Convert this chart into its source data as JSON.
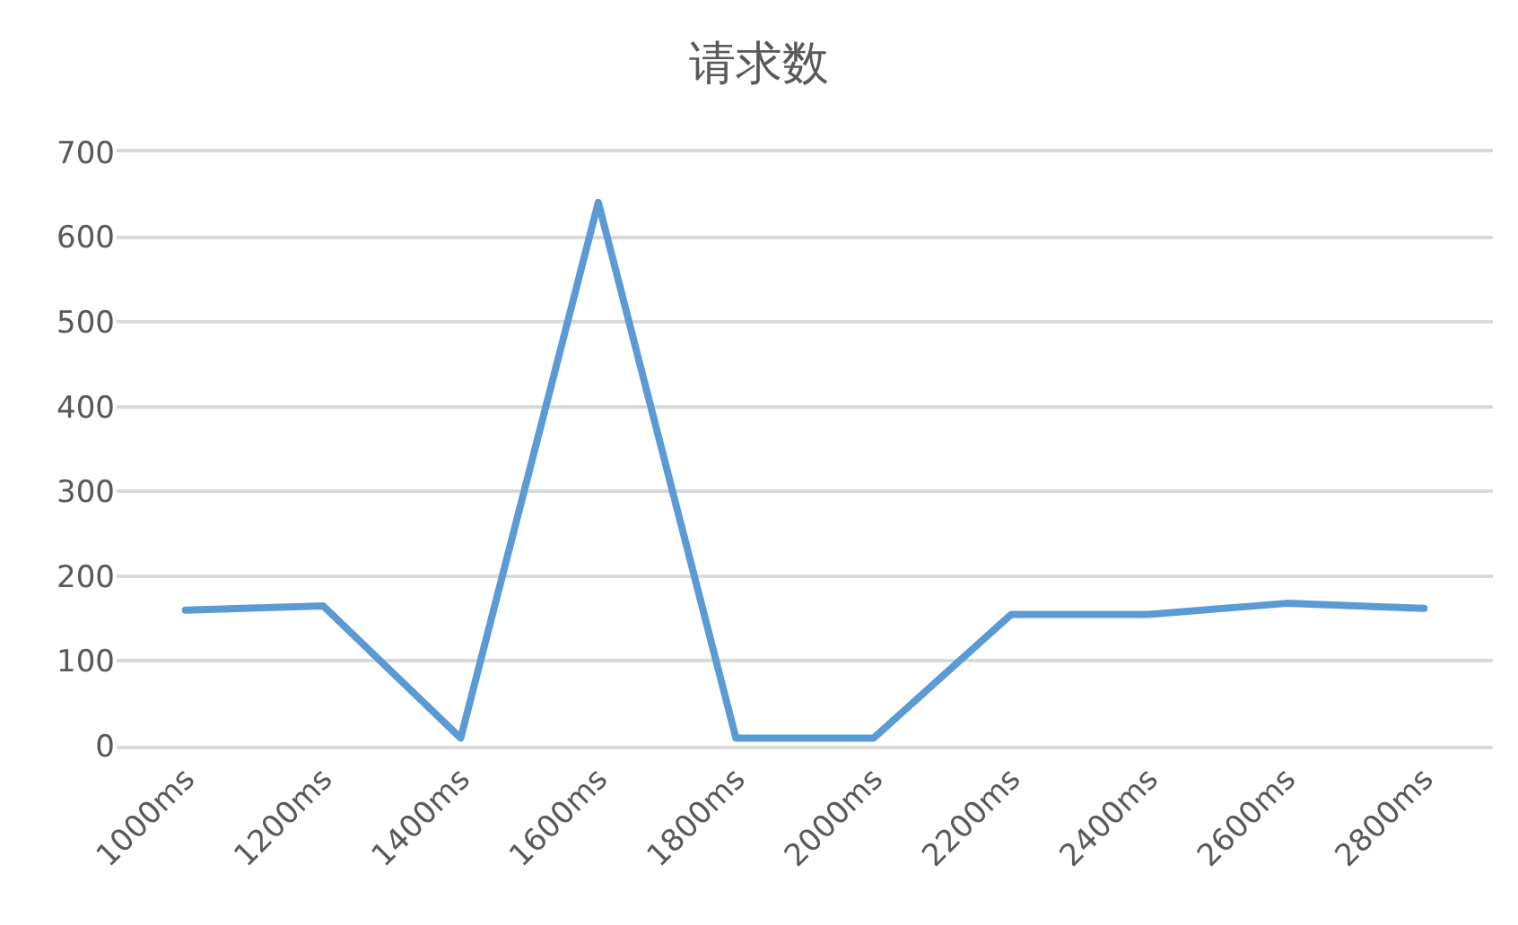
{
  "chart_data": {
    "type": "line",
    "title": "请求数",
    "categories": [
      "1000ms",
      "1200ms",
      "1400ms",
      "1600ms",
      "1800ms",
      "2000ms",
      "2200ms",
      "2400ms",
      "2600ms",
      "2800ms"
    ],
    "series": [
      {
        "color": "#5b9bd5",
        "values": [
          160,
          165,
          9,
          641,
          9,
          9,
          155,
          155,
          168,
          162
        ]
      }
    ],
    "ylim": [
      0,
      700
    ],
    "yticks": [
      0,
      100,
      200,
      300,
      400,
      500,
      600,
      700
    ],
    "grid": "y",
    "legend": false,
    "marker": "none",
    "line_style": "solid"
  }
}
